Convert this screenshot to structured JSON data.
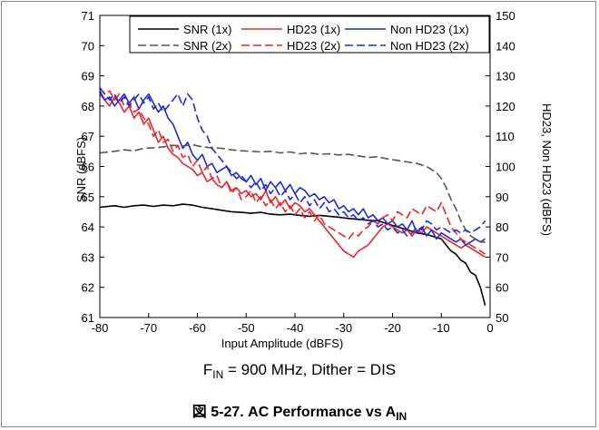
{
  "condition": {
    "prefix": "F",
    "sub": "IN",
    "rest": " = 900 MHz, Dither = DIS"
  },
  "caption": {
    "prefix": "図 5-27. AC Performance vs A",
    "sub": "IN"
  },
  "chart_data": {
    "type": "line",
    "xlabel": "Input Amplitude (dBFS)",
    "ylabel": "SNR (dBFS)",
    "y2label": "HD23, Non HD23 (dBFS)",
    "xlim": [
      -80,
      0
    ],
    "ylim": [
      61,
      71
    ],
    "y2lim": [
      50,
      150
    ],
    "xticks": [
      -80,
      -70,
      -60,
      -50,
      -40,
      -30,
      -20,
      -10,
      0
    ],
    "yticks": [
      61,
      62,
      63,
      64,
      65,
      66,
      67,
      68,
      69,
      70,
      71
    ],
    "y2ticks": [
      50,
      60,
      70,
      80,
      90,
      100,
      110,
      120,
      130,
      140,
      150
    ],
    "grid": false,
    "legend": "top, 3 columns x 2 rows",
    "series": [
      {
        "name": "SNR (1x)",
        "color": "#000000",
        "dash": "solid",
        "axis": "left",
        "x": [
          -80,
          -77,
          -75,
          -73,
          -71,
          -69,
          -67,
          -65,
          -63,
          -61,
          -59,
          -57,
          -55,
          -53,
          -51,
          -49,
          -47,
          -45,
          -43,
          -41,
          -39,
          -37,
          -35,
          -33,
          -31,
          -29,
          -27,
          -25,
          -23,
          -21,
          -19,
          -17,
          -15,
          -13,
          -11,
          -10,
          -9,
          -8,
          -7,
          -6,
          -5,
          -4,
          -3,
          -2,
          -1
        ],
        "y": [
          64.65,
          64.7,
          64.65,
          64.7,
          64.72,
          64.68,
          64.72,
          64.7,
          64.75,
          64.72,
          64.65,
          64.6,
          64.55,
          64.5,
          64.48,
          64.45,
          64.48,
          64.42,
          64.4,
          64.42,
          64.38,
          64.35,
          64.38,
          64.35,
          64.32,
          64.28,
          64.25,
          64.22,
          64.2,
          64.1,
          64.0,
          63.9,
          63.8,
          63.75,
          63.65,
          63.6,
          63.4,
          63.2,
          63.1,
          62.9,
          62.8,
          62.5,
          62.4,
          62.0,
          61.4
        ]
      },
      {
        "name": "HD23 (1x)",
        "color": "#e8262b",
        "dash": "solid",
        "axis": "right",
        "x": [
          -80,
          -79,
          -78,
          -77,
          -76,
          -75,
          -74,
          -73,
          -72,
          -71,
          -70,
          -69,
          -68,
          -67,
          -66,
          -65,
          -64,
          -63,
          -62,
          -61,
          -60,
          -59,
          -58,
          -57,
          -56,
          -55,
          -54,
          -53,
          -52,
          -51,
          -50,
          -49,
          -48,
          -47,
          -46,
          -45,
          -44,
          -43,
          -42,
          -41,
          -40,
          -39,
          -38,
          -37,
          -36,
          -35,
          -34,
          -33,
          -32,
          -31,
          -30,
          -29,
          -28,
          -27,
          -26,
          -25,
          -24,
          -23,
          -22,
          -21,
          -20,
          -19,
          -18,
          -17,
          -16,
          -15,
          -14,
          -13,
          -12,
          -11,
          -10,
          -9,
          -8,
          -7,
          -6,
          -5,
          -4,
          -3,
          -2,
          -1
        ],
        "y": [
          124,
          122,
          120,
          123,
          121,
          118,
          120,
          116,
          118,
          114,
          116,
          112,
          108,
          110,
          106,
          104,
          103,
          101,
          100,
          99,
          97,
          98,
          95,
          96,
          94,
          93,
          95,
          92,
          93,
          91,
          92,
          90,
          91,
          89,
          92,
          88,
          90,
          87,
          89,
          86,
          88,
          87,
          85,
          86,
          84,
          82,
          80,
          78,
          76,
          74,
          72,
          71,
          70,
          72,
          73,
          74,
          76,
          78,
          80,
          81,
          80,
          79,
          78,
          79,
          77,
          79,
          78,
          80,
          79,
          78,
          77,
          76,
          75,
          74,
          73,
          74,
          73,
          72,
          71,
          70
        ]
      },
      {
        "name": "Non HD23 (1x)",
        "color": "#1f2bd6",
        "dash": "solid",
        "axis": "right",
        "x": [
          -80,
          -79,
          -78,
          -77,
          -76,
          -75,
          -74,
          -73,
          -72,
          -71,
          -70,
          -69,
          -68,
          -67,
          -66,
          -65,
          -64,
          -63,
          -62,
          -61,
          -60,
          -59,
          -58,
          -57,
          -56,
          -55,
          -54,
          -53,
          -52,
          -51,
          -50,
          -49,
          -48,
          -47,
          -46,
          -45,
          -44,
          -43,
          -42,
          -41,
          -40,
          -39,
          -38,
          -37,
          -36,
          -35,
          -34,
          -33,
          -32,
          -31,
          -30,
          -29,
          -28,
          -27,
          -26,
          -25,
          -24,
          -23,
          -22,
          -21,
          -20,
          -19,
          -18,
          -17,
          -16,
          -15,
          -14,
          -13,
          -12,
          -11,
          -10,
          -9,
          -8,
          -7,
          -6,
          -5,
          -4,
          -3,
          -2,
          -1
        ],
        "y": [
          125,
          122,
          123,
          120,
          122,
          124,
          121,
          123,
          119,
          122,
          124,
          121,
          118,
          120,
          116,
          114,
          110,
          106,
          108,
          104,
          102,
          104,
          100,
          101,
          98,
          99,
          100,
          97,
          98,
          96,
          95,
          97,
          94,
          96,
          92,
          95,
          93,
          95,
          92,
          94,
          91,
          93,
          92,
          90,
          91,
          89,
          90,
          88,
          89,
          86,
          87,
          85,
          86,
          84,
          86,
          83,
          84,
          82,
          83,
          81,
          82,
          80,
          81,
          79,
          82,
          78,
          80,
          77,
          79,
          76,
          78,
          77,
          76,
          75,
          76,
          74,
          75,
          76,
          75,
          76
        ]
      },
      {
        "name": "SNR (2x)",
        "color": "#555555",
        "dash": "dashed",
        "axis": "left",
        "x": [
          -80,
          -77,
          -75,
          -73,
          -71,
          -69,
          -67,
          -65,
          -63,
          -61,
          -59,
          -57,
          -55,
          -53,
          -51,
          -49,
          -47,
          -45,
          -43,
          -41,
          -39,
          -37,
          -35,
          -33,
          -31,
          -29,
          -27,
          -25,
          -23,
          -21,
          -19,
          -17,
          -15,
          -13,
          -11,
          -10,
          -9,
          -8,
          -7,
          -6,
          -5,
          -4,
          -3,
          -2,
          -1
        ],
        "y": [
          66.45,
          66.5,
          66.55,
          66.52,
          66.6,
          66.62,
          66.65,
          66.7,
          66.68,
          66.72,
          66.65,
          66.62,
          66.6,
          66.55,
          66.52,
          66.5,
          66.48,
          66.5,
          66.45,
          66.48,
          66.42,
          66.45,
          66.4,
          66.42,
          66.38,
          66.4,
          66.35,
          66.3,
          66.32,
          66.25,
          66.2,
          66.15,
          66.1,
          66.0,
          65.8,
          65.6,
          65.3,
          64.9,
          64.6,
          64.2,
          63.9,
          63.7,
          63.6,
          63.5,
          63.5
        ]
      },
      {
        "name": "HD23 (2x)",
        "color": "#e8262b",
        "dash": "dashed",
        "axis": "right",
        "x": [
          -80,
          -79,
          -78,
          -77,
          -76,
          -75,
          -74,
          -73,
          -72,
          -71,
          -70,
          -69,
          -68,
          -67,
          -66,
          -65,
          -64,
          -63,
          -62,
          -61,
          -60,
          -59,
          -58,
          -57,
          -56,
          -55,
          -54,
          -53,
          -52,
          -51,
          -50,
          -49,
          -48,
          -47,
          -46,
          -45,
          -44,
          -43,
          -42,
          -41,
          -40,
          -39,
          -38,
          -37,
          -36,
          -35,
          -34,
          -33,
          -32,
          -31,
          -30,
          -29,
          -28,
          -27,
          -26,
          -25,
          -24,
          -23,
          -22,
          -21,
          -20,
          -19,
          -18,
          -17,
          -16,
          -15,
          -14,
          -13,
          -12,
          -11,
          -10,
          -9,
          -8,
          -7,
          -6,
          -5,
          -4,
          -3,
          -2,
          -1
        ],
        "y": [
          126,
          124,
          125,
          122,
          124,
          120,
          121,
          118,
          119,
          116,
          114,
          110,
          112,
          108,
          109,
          105,
          107,
          103,
          104,
          100,
          102,
          98,
          100,
          96,
          97,
          93,
          95,
          91,
          93,
          89,
          90,
          92,
          88,
          90,
          87,
          89,
          86,
          88,
          85,
          87,
          84,
          86,
          83,
          85,
          82,
          84,
          81,
          80,
          79,
          78,
          77,
          76,
          78,
          77,
          79,
          80,
          82,
          81,
          83,
          84,
          82,
          85,
          84,
          83,
          86,
          85,
          84,
          87,
          86,
          85,
          88,
          84,
          80,
          78,
          76,
          75,
          74,
          73,
          72,
          71
        ]
      },
      {
        "name": "Non HD23 (2x)",
        "color": "#1f2bd6",
        "dash": "dashed",
        "axis": "right",
        "x": [
          -80,
          -79,
          -78,
          -77,
          -76,
          -75,
          -74,
          -73,
          -72,
          -71,
          -70,
          -69,
          -68,
          -67,
          -66,
          -65,
          -64,
          -63,
          -62,
          -61,
          -60,
          -59,
          -58,
          -57,
          -56,
          -55,
          -54,
          -53,
          -52,
          -51,
          -50,
          -49,
          -48,
          -47,
          -46,
          -45,
          -44,
          -43,
          -42,
          -41,
          -40,
          -39,
          -38,
          -37,
          -36,
          -35,
          -34,
          -33,
          -32,
          -31,
          -30,
          -29,
          -28,
          -27,
          -26,
          -25,
          -24,
          -23,
          -22,
          -21,
          -20,
          -19,
          -18,
          -17,
          -16,
          -15,
          -14,
          -13,
          -12,
          -11,
          -10,
          -9,
          -8,
          -7,
          -6,
          -5,
          -4,
          -3,
          -2,
          -1
        ],
        "y": [
          126,
          124,
          122,
          124,
          121,
          123,
          120,
          122,
          124,
          121,
          123,
          119,
          121,
          118,
          120,
          122,
          124,
          120,
          124,
          122,
          116,
          112,
          110,
          106,
          104,
          102,
          100,
          98,
          96,
          97,
          95,
          93,
          95,
          92,
          94,
          91,
          93,
          90,
          92,
          89,
          91,
          88,
          90,
          87,
          89,
          86,
          88,
          85,
          86,
          84,
          85,
          83,
          84,
          82,
          83,
          81,
          82,
          80,
          81,
          79,
          80,
          78,
          79,
          77,
          78,
          80,
          79,
          82,
          81,
          79,
          80,
          79,
          78,
          79,
          78,
          79,
          78,
          79,
          80,
          82
        ]
      }
    ]
  }
}
